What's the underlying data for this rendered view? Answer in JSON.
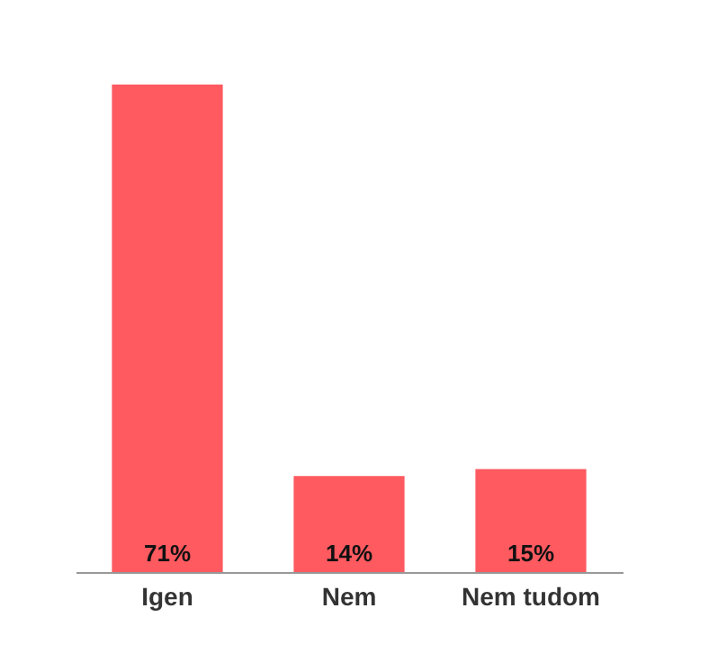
{
  "chart_data": {
    "type": "bar",
    "categories": [
      "Igen",
      "Nem",
      "Nem tudom"
    ],
    "values": [
      71,
      14,
      15
    ],
    "color": "#fe5a60",
    "data_labels": true,
    "value_labels": [
      "71%",
      "14%",
      "15%"
    ]
  }
}
